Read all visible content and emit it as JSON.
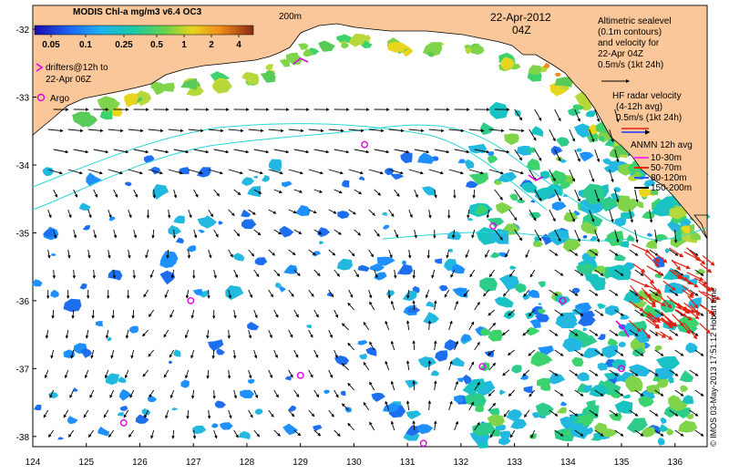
{
  "title": "MODIS Chl-a mg/m3 v6.4 OC3",
  "colorbar": {
    "ticks": [
      "0.05",
      "0.1",
      "0.25",
      "0.5",
      "1",
      "2",
      "4"
    ],
    "colors": [
      "#1a0ab0",
      "#1f4fe0",
      "#1e90ff",
      "#19c3c3",
      "#3cd36c",
      "#9bd53a",
      "#e8d21e",
      "#f08a1a",
      "#c0501a",
      "#8a2a10"
    ]
  },
  "isobath_label": "200m",
  "date": "22-Apr-2012",
  "time": "04Z",
  "legend_left": {
    "drifters": [
      "drifters@12h to",
      "22-Apr 06Z"
    ],
    "argo": "Argo"
  },
  "legend_right": {
    "altimetric": [
      "Altimetric sealevel",
      "(0.1m contours)",
      "and velocity for",
      "22-Apr 04Z",
      "0.5m/s (1kt 24h)"
    ],
    "hf_radar": [
      "HF radar velocity",
      "(4-12h avg)",
      "0.5m/s (1kt 24h)"
    ],
    "anmn_title": "ANMN 12h avg",
    "anmn_items": [
      {
        "label": "10-30m",
        "color": "#ff33ff"
      },
      {
        "label": "50-70m",
        "color": "#ff2200"
      },
      {
        "label": "80-120m",
        "color": "#3355ff"
      },
      {
        "label": "150-200m",
        "color": "#000000"
      }
    ]
  },
  "credit": "© IMOS 03-May-2013 17:51:12 Hobart time",
  "axes": {
    "lon_ticks": [
      "124",
      "125",
      "126",
      "127",
      "128",
      "129",
      "130",
      "131",
      "132",
      "133",
      "134",
      "135",
      "136"
    ],
    "lat_ticks": [
      "-32",
      "-33",
      "-34",
      "-35",
      "-36",
      "-37",
      "-38"
    ],
    "lon_range": [
      124,
      136.6
    ],
    "lat_range": [
      -31.65,
      -38.15
    ]
  },
  "colors": {
    "land": "#f9c799",
    "ocean": "#ffffff",
    "argo": "#e000e0",
    "hf": "#e02010"
  }
}
